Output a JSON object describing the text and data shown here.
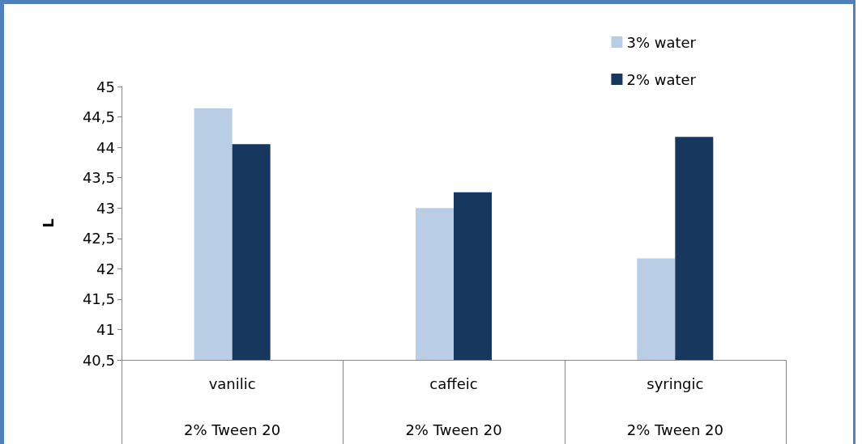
{
  "chart_data": {
    "type": "bar",
    "ylabel": "L",
    "categories": [
      "vanilic",
      "caffeic",
      "syringic"
    ],
    "series": [
      {
        "name": "3% water",
        "color": "#b9cde5",
        "values": [
          44.64,
          43.0,
          42.17
        ]
      },
      {
        "name": "2% water",
        "color": "#17375e",
        "values": [
          44.05,
          43.26,
          44.17
        ]
      }
    ],
    "ylim": [
      40.5,
      45
    ],
    "yticks": [
      {
        "value": 40.5,
        "label": "40,5"
      },
      {
        "value": 41,
        "label": "41"
      },
      {
        "value": 41.5,
        "label": "41,5"
      },
      {
        "value": 42,
        "label": "42"
      },
      {
        "value": 42.5,
        "label": "42,5"
      },
      {
        "value": 43,
        "label": "43"
      },
      {
        "value": 43.5,
        "label": "43,5"
      },
      {
        "value": 44,
        "label": "44"
      },
      {
        "value": 44.5,
        "label": "44,5"
      },
      {
        "value": 45,
        "label": "45"
      }
    ],
    "annotations": [
      "2% Tween 20",
      "2% Tween 20",
      "2% Tween 20"
    ],
    "grid": false,
    "legend": "top right"
  }
}
